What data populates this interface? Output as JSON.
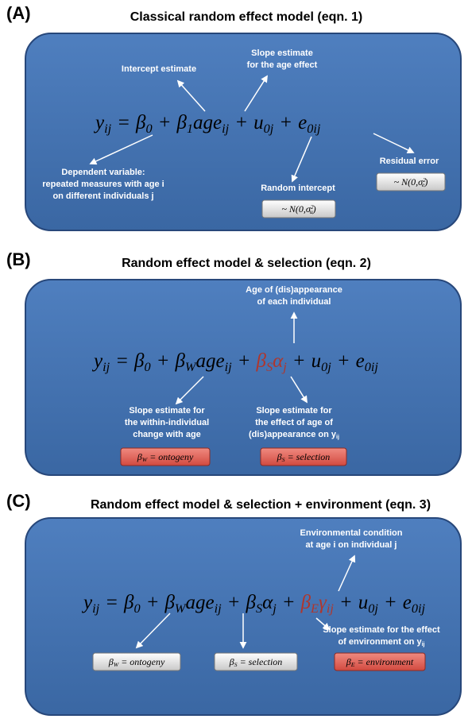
{
  "panels": [
    {
      "label": "(A)",
      "title": "Classical random effect model (eqn. 1)",
      "equation": [
        {
          "text": "y",
          "sub": "ij"
        },
        {
          "text": "="
        },
        {
          "text": "β",
          "sub": "0"
        },
        {
          "text": "+"
        },
        {
          "text": "β",
          "sub": "1"
        },
        {
          "text": "age",
          "sub": "ij"
        },
        {
          "text": "+"
        },
        {
          "text": "u",
          "sub": "0j"
        },
        {
          "text": "+"
        },
        {
          "text": "e",
          "sub": "0ij"
        }
      ],
      "annotations": [
        {
          "lines": [
            [
              {
                "text": "Intercept estimate"
              }
            ]
          ]
        },
        {
          "lines": [
            [
              {
                "text": "Slope estimate"
              }
            ],
            [
              {
                "text": "for the age effect"
              }
            ]
          ]
        },
        {
          "lines": [
            [
              {
                "text": "Dependent variable:"
              }
            ],
            [
              {
                "text": "repeated measures with age i"
              }
            ],
            [
              {
                "text": "on different individuals j"
              }
            ]
          ]
        },
        {
          "lines": [
            [
              {
                "text": "Random intercept"
              }
            ]
          ],
          "box": [
            {
              "text": "~ N(0,σ",
              "sub": "u",
              "sup": "2"
            },
            {
              "text": ")"
            }
          ],
          "box_color": "grey"
        },
        {
          "lines": [
            [
              {
                "text": "Residual error"
              }
            ]
          ],
          "box": [
            {
              "text": "~ N(0,σ",
              "sub": "e",
              "sup": "2"
            },
            {
              "text": ")"
            }
          ],
          "box_color": "grey"
        }
      ]
    },
    {
      "label": "(B)",
      "title": "Random effect model & selection (eqn. 2)",
      "equation": [
        {
          "text": "y",
          "sub": "ij"
        },
        {
          "text": "="
        },
        {
          "text": "β",
          "sub": "0"
        },
        {
          "text": "+"
        },
        {
          "text": "β",
          "sub": "W"
        },
        {
          "text": "age",
          "sub": "ij"
        },
        {
          "text": "+"
        },
        {
          "text": "β",
          "sub": "S",
          "highlight": true
        },
        {
          "text": "α",
          "sub": "j",
          "highlight": true
        },
        {
          "text": "+"
        },
        {
          "text": "u",
          "sub": "0j"
        },
        {
          "text": "+"
        },
        {
          "text": "e",
          "sub": "0ij"
        }
      ],
      "annotations": [
        {
          "lines": [
            [
              {
                "text": "Age of (dis)appearance"
              }
            ],
            [
              {
                "text": "of each individual"
              }
            ]
          ]
        },
        {
          "lines": [
            [
              {
                "text": "Slope estimate for"
              }
            ],
            [
              {
                "text": "the within-individual"
              }
            ],
            [
              {
                "text": "change with age"
              }
            ]
          ],
          "box": [
            {
              "text": "β",
              "sub": "W"
            },
            {
              "text": " = ontogeny"
            }
          ],
          "box_color": "red"
        },
        {
          "lines": [
            [
              {
                "text": "Slope estimate for"
              }
            ],
            [
              {
                "text": "the effect of age of"
              }
            ],
            [
              {
                "text": "(dis)appearance on y",
                "sub": "ij"
              }
            ]
          ],
          "box": [
            {
              "text": "β",
              "sub": "S"
            },
            {
              "text": " = selection"
            }
          ],
          "box_color": "red"
        }
      ]
    },
    {
      "label": "(C)",
      "title": "Random effect model & selection + environment (eqn. 3)",
      "equation": [
        {
          "text": "y",
          "sub": "ij"
        },
        {
          "text": "="
        },
        {
          "text": "β",
          "sub": "0"
        },
        {
          "text": "+"
        },
        {
          "text": "β",
          "sub": "W"
        },
        {
          "text": "age",
          "sub": "ij"
        },
        {
          "text": "+"
        },
        {
          "text": "β",
          "sub": "S"
        },
        {
          "text": "α",
          "sub": "j"
        },
        {
          "text": "+"
        },
        {
          "text": "β",
          "sub": "E",
          "highlight": true
        },
        {
          "text": "γ",
          "sub": "ij",
          "highlight": true
        },
        {
          "text": "+"
        },
        {
          "text": "u",
          "sub": "0j"
        },
        {
          "text": "+"
        },
        {
          "text": "e",
          "sub": "0ij"
        }
      ],
      "annotations": [
        {
          "lines": [
            [
              {
                "text": "Environmental condition"
              }
            ],
            [
              {
                "text": "at age i on individual j"
              }
            ]
          ]
        },
        {
          "lines": [],
          "box": [
            {
              "text": "β",
              "sub": "W"
            },
            {
              "text": " = ontogeny"
            }
          ],
          "box_color": "grey"
        },
        {
          "lines": [],
          "box": [
            {
              "text": "β",
              "sub": "S"
            },
            {
              "text": " = selection"
            }
          ],
          "box_color": "grey"
        },
        {
          "lines": [
            [
              {
                "text": "Slope estimate for the effect"
              }
            ],
            [
              {
                "text": "of environment on y",
                "sub": "ij"
              }
            ]
          ],
          "box": [
            {
              "text": "β",
              "sub": "E"
            },
            {
              "text": " = environment"
            }
          ],
          "box_color": "red"
        }
      ]
    }
  ]
}
